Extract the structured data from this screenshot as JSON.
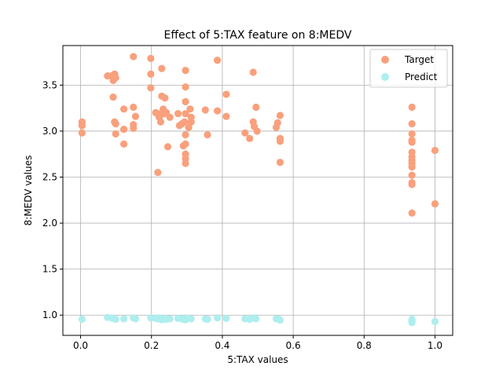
{
  "chart_data": {
    "type": "scatter",
    "title": "Effect of 5:TAX feature on 8:MEDV",
    "xlabel": "5:TAX values",
    "ylabel": "8:MEDV values",
    "xlim": [
      -0.05,
      1.05
    ],
    "ylim": [
      0.78,
      3.93
    ],
    "xticks": [
      0.0,
      0.2,
      0.4,
      0.6,
      0.8,
      1.0
    ],
    "xtick_labels": [
      "0.0",
      "0.2",
      "0.4",
      "0.6",
      "0.8",
      "1.0"
    ],
    "yticks": [
      1.0,
      1.5,
      2.0,
      2.5,
      3.0,
      3.5
    ],
    "ytick_labels": [
      "1.0",
      "1.5",
      "2.0",
      "2.5",
      "3.0",
      "3.5"
    ],
    "grid": true,
    "legend_position": "top-right",
    "series": [
      {
        "name": "Target",
        "color": "#f9a07c",
        "points": [
          [
            0.004,
            3.1
          ],
          [
            0.004,
            3.06
          ],
          [
            0.004,
            2.98
          ],
          [
            0.076,
            3.6
          ],
          [
            0.088,
            3.6
          ],
          [
            0.092,
            3.55
          ],
          [
            0.092,
            3.37
          ],
          [
            0.096,
            3.62
          ],
          [
            0.099,
            3.58
          ],
          [
            0.096,
            3.1
          ],
          [
            0.099,
            3.08
          ],
          [
            0.099,
            2.97
          ],
          [
            0.122,
            3.24
          ],
          [
            0.122,
            3.02
          ],
          [
            0.122,
            2.86
          ],
          [
            0.149,
            3.81
          ],
          [
            0.149,
            3.26
          ],
          [
            0.149,
            3.07
          ],
          [
            0.149,
            3.03
          ],
          [
            0.155,
            3.16
          ],
          [
            0.198,
            3.79
          ],
          [
            0.198,
            3.62
          ],
          [
            0.198,
            3.47
          ],
          [
            0.212,
            3.2
          ],
          [
            0.218,
            2.55
          ],
          [
            0.218,
            3.19
          ],
          [
            0.222,
            3.15
          ],
          [
            0.226,
            3.1
          ],
          [
            0.229,
            3.68
          ],
          [
            0.229,
            3.38
          ],
          [
            0.233,
            3.24
          ],
          [
            0.236,
            3.19
          ],
          [
            0.238,
            3.36
          ],
          [
            0.242,
            3.2
          ],
          [
            0.246,
            2.83
          ],
          [
            0.252,
            3.15
          ],
          [
            0.275,
            3.19
          ],
          [
            0.279,
            3.06
          ],
          [
            0.286,
            3.08
          ],
          [
            0.29,
            2.84
          ],
          [
            0.293,
            3.1
          ],
          [
            0.296,
            3.66
          ],
          [
            0.296,
            3.48
          ],
          [
            0.296,
            3.32
          ],
          [
            0.296,
            3.19
          ],
          [
            0.296,
            2.96
          ],
          [
            0.296,
            2.86
          ],
          [
            0.296,
            2.75
          ],
          [
            0.296,
            2.7
          ],
          [
            0.296,
            2.65
          ],
          [
            0.305,
            3.04
          ],
          [
            0.309,
            3.24
          ],
          [
            0.312,
            3.15
          ],
          [
            0.312,
            3.1
          ],
          [
            0.352,
            3.23
          ],
          [
            0.358,
            2.96
          ],
          [
            0.386,
            3.77
          ],
          [
            0.386,
            3.22
          ],
          [
            0.411,
            3.4
          ],
          [
            0.411,
            3.16
          ],
          [
            0.464,
            2.98
          ],
          [
            0.477,
            2.92
          ],
          [
            0.487,
            3.64
          ],
          [
            0.487,
            3.1
          ],
          [
            0.49,
            3.05
          ],
          [
            0.495,
            3.26
          ],
          [
            0.498,
            3.0
          ],
          [
            0.552,
            3.04
          ],
          [
            0.556,
            3.09
          ],
          [
            0.563,
            3.17
          ],
          [
            0.563,
            2.92
          ],
          [
            0.563,
            2.89
          ],
          [
            0.563,
            2.66
          ],
          [
            0.935,
            3.26
          ],
          [
            0.935,
            3.08
          ],
          [
            0.935,
            2.97
          ],
          [
            0.935,
            2.9
          ],
          [
            0.935,
            2.88
          ],
          [
            0.935,
            2.77
          ],
          [
            0.935,
            2.72
          ],
          [
            0.935,
            2.68
          ],
          [
            0.935,
            2.65
          ],
          [
            0.935,
            2.61
          ],
          [
            0.935,
            2.52
          ],
          [
            0.935,
            2.44
          ],
          [
            0.935,
            2.42
          ],
          [
            0.935,
            2.11
          ],
          [
            1.0,
            2.79
          ],
          [
            1.0,
            2.21
          ]
        ]
      },
      {
        "name": "Predict",
        "color": "#aeeeee",
        "points": [
          [
            0.004,
            0.955
          ],
          [
            0.076,
            0.975
          ],
          [
            0.088,
            0.97
          ],
          [
            0.092,
            0.965
          ],
          [
            0.096,
            0.96
          ],
          [
            0.099,
            0.955
          ],
          [
            0.122,
            0.96
          ],
          [
            0.149,
            0.97
          ],
          [
            0.155,
            0.96
          ],
          [
            0.198,
            0.97
          ],
          [
            0.212,
            0.965
          ],
          [
            0.218,
            0.96
          ],
          [
            0.222,
            0.97
          ],
          [
            0.226,
            0.955
          ],
          [
            0.229,
            0.95
          ],
          [
            0.233,
            0.96
          ],
          [
            0.238,
            0.965
          ],
          [
            0.242,
            0.955
          ],
          [
            0.252,
            0.96
          ],
          [
            0.275,
            0.965
          ],
          [
            0.286,
            0.96
          ],
          [
            0.29,
            0.955
          ],
          [
            0.296,
            0.97
          ],
          [
            0.296,
            0.95
          ],
          [
            0.305,
            0.965
          ],
          [
            0.312,
            0.96
          ],
          [
            0.352,
            0.96
          ],
          [
            0.358,
            0.955
          ],
          [
            0.386,
            0.97
          ],
          [
            0.411,
            0.965
          ],
          [
            0.464,
            0.96
          ],
          [
            0.477,
            0.955
          ],
          [
            0.487,
            0.97
          ],
          [
            0.495,
            0.96
          ],
          [
            0.552,
            0.96
          ],
          [
            0.56,
            0.955
          ],
          [
            0.563,
            0.945
          ],
          [
            0.935,
            0.955
          ],
          [
            0.935,
            0.935
          ],
          [
            0.935,
            0.92
          ],
          [
            1.0,
            0.93
          ]
        ]
      }
    ]
  }
}
